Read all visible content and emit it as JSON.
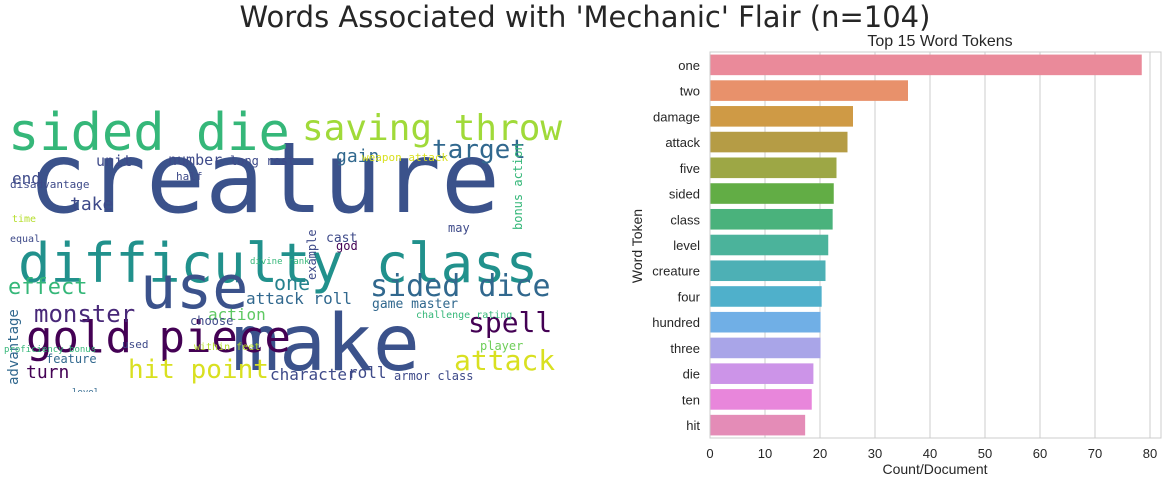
{
  "figure": {
    "title": "Words Associated with 'Mechanic' Flair (n=104)"
  },
  "chart_data": [
    {
      "type": "wordcloud",
      "words": [
        {
          "text": "creature",
          "color": "#3b528b"
        },
        {
          "text": "make",
          "color": "#3b528b"
        },
        {
          "text": "difficulty class",
          "color": "#21918c"
        },
        {
          "text": "sided die",
          "color": "#35b779"
        },
        {
          "text": "use",
          "color": "#3b528b"
        },
        {
          "text": "gold piece",
          "color": "#440154"
        },
        {
          "text": "saving throw",
          "color": "#a0da39"
        },
        {
          "text": "target",
          "color": "#31688e"
        },
        {
          "text": "sided dice",
          "color": "#31688e"
        },
        {
          "text": "spell",
          "color": "#440154"
        },
        {
          "text": "attack",
          "color": "#d9e021"
        },
        {
          "text": "hit point",
          "color": "#d9e021"
        },
        {
          "text": "monster",
          "color": "#482878"
        },
        {
          "text": "effect",
          "color": "#35b779"
        },
        {
          "text": "character",
          "color": "#3e4a89"
        },
        {
          "text": "attack roll",
          "color": "#31688e"
        },
        {
          "text": "take",
          "color": "#3e4a89"
        },
        {
          "text": "one",
          "color": "#26828e"
        },
        {
          "text": "gain",
          "color": "#31688e"
        },
        {
          "text": "turn",
          "color": "#440154"
        },
        {
          "text": "roll",
          "color": "#3e4a89"
        },
        {
          "text": "end",
          "color": "#3e4a89"
        },
        {
          "text": "number",
          "color": "#3e4a89"
        },
        {
          "text": "unit",
          "color": "#3e4a89"
        },
        {
          "text": "action",
          "color": "#5ec962"
        },
        {
          "text": "advantage",
          "color": "#31688e"
        },
        {
          "text": "game master",
          "color": "#31688e"
        },
        {
          "text": "cast",
          "color": "#3e4a89"
        },
        {
          "text": "player",
          "color": "#6ece58"
        },
        {
          "text": "long rest",
          "color": "#3e4a89"
        },
        {
          "text": "weapon attack",
          "color": "#d9e021"
        },
        {
          "text": "armor class",
          "color": "#3e4a89"
        },
        {
          "text": "bonus action",
          "color": "#35b779"
        },
        {
          "text": "feature",
          "color": "#31688e"
        },
        {
          "text": "example",
          "color": "#3e4a89"
        },
        {
          "text": "may",
          "color": "#3e4a89"
        },
        {
          "text": "choose",
          "color": "#3e4a89"
        },
        {
          "text": "god",
          "color": "#440154"
        },
        {
          "text": "used",
          "color": "#3e4a89"
        },
        {
          "text": "half",
          "color": "#3e4a89"
        },
        {
          "text": "disadvantage",
          "color": "#3e4a89"
        },
        {
          "text": "time",
          "color": "#b5de2b"
        },
        {
          "text": "equal",
          "color": "#3e4a89"
        },
        {
          "text": "within feet",
          "color": "#b5de2b"
        },
        {
          "text": "challenge rating",
          "color": "#35b779"
        },
        {
          "text": "divine rank",
          "color": "#35b779"
        },
        {
          "text": "level",
          "color": "#31688e"
        },
        {
          "text": "proficiency bonus",
          "color": "#35b779"
        }
      ]
    },
    {
      "type": "bar",
      "orientation": "horizontal",
      "title": "Top 15 Word Tokens",
      "xlabel": "Count/Document",
      "ylabel": "Word Token",
      "xlim": [
        0,
        82
      ],
      "xticks": [
        0,
        10,
        20,
        30,
        40,
        50,
        60,
        70,
        80
      ],
      "grid": true,
      "categories": [
        "one",
        "two",
        "damage",
        "attack",
        "five",
        "sided",
        "class",
        "level",
        "creature",
        "four",
        "hundred",
        "three",
        "die",
        "ten",
        "hit"
      ],
      "values": [
        78.5,
        36,
        26,
        25,
        23,
        22.5,
        22.3,
        21.5,
        21,
        20.3,
        20.1,
        20.1,
        18.8,
        18.5,
        17.3
      ],
      "colors": [
        "#ea8a9a",
        "#e8916b",
        "#cf9a45",
        "#b59c45",
        "#9da745",
        "#62ad45",
        "#4ab27c",
        "#4bb39b",
        "#4db0b5",
        "#4fb0cb",
        "#70afe6",
        "#a9a5e8",
        "#cc94e8",
        "#e886db",
        "#e48cb7"
      ]
    }
  ]
}
